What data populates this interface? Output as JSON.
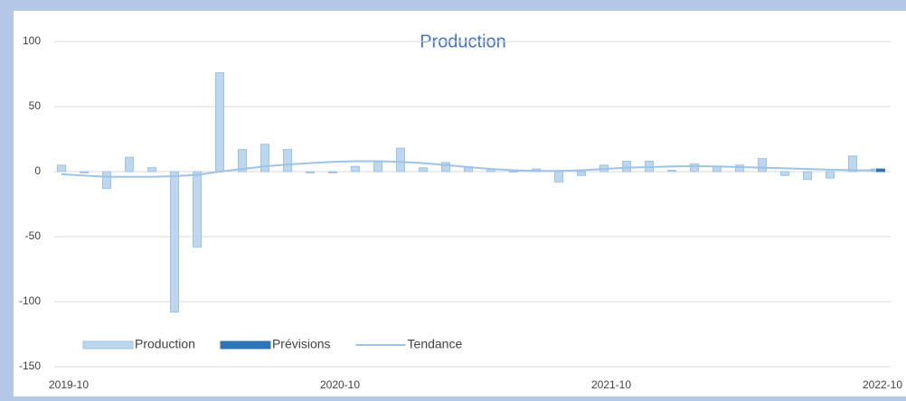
{
  "chart_data": {
    "type": "bar",
    "title": "Production",
    "categories": [
      "2019-10",
      null,
      null,
      null,
      null,
      null,
      null,
      null,
      null,
      null,
      null,
      null,
      "2020-10",
      null,
      null,
      null,
      null,
      null,
      null,
      null,
      null,
      null,
      null,
      null,
      "2021-10",
      null,
      null,
      null,
      null,
      null,
      null,
      null,
      null,
      null,
      null,
      null,
      "2022-10"
    ],
    "series": [
      {
        "name": "Production",
        "color": "#bdd7ee",
        "values": [
          5,
          -1,
          -13,
          11,
          3,
          -108,
          -58,
          76,
          17,
          21,
          17,
          -1,
          -1,
          4,
          8,
          18,
          3,
          7,
          3,
          2,
          0,
          2,
          -8,
          -3,
          5,
          8,
          8,
          1,
          6,
          4,
          5,
          10,
          -3,
          -6,
          -5,
          12,
          2
        ]
      },
      {
        "name": "Prévisions",
        "color": "#2e75b6",
        "values": [
          null,
          null,
          null,
          null,
          null,
          null,
          null,
          null,
          null,
          null,
          null,
          null,
          null,
          null,
          null,
          null,
          null,
          null,
          null,
          null,
          null,
          null,
          null,
          null,
          null,
          null,
          null,
          null,
          null,
          null,
          null,
          null,
          null,
          null,
          null,
          null,
          2
        ]
      },
      {
        "name": "Tendance",
        "type": "line",
        "color": "#9dc3e6",
        "values": [
          -2,
          -3,
          -4,
          -4,
          -4,
          -3.5,
          -2.5,
          0,
          2,
          4,
          5.5,
          6.5,
          7.5,
          8,
          8,
          7.5,
          6.5,
          5,
          3.5,
          2,
          1,
          0.5,
          0.5,
          1,
          2,
          3,
          3.5,
          4,
          4.2,
          4,
          3.5,
          3,
          2.5,
          2,
          1.5,
          1,
          1
        ]
      }
    ],
    "ylim": [
      -150,
      100
    ],
    "yticks": [
      -150,
      -100,
      -50,
      0,
      50,
      100
    ],
    "grid": true,
    "legend": "bottom-left"
  }
}
